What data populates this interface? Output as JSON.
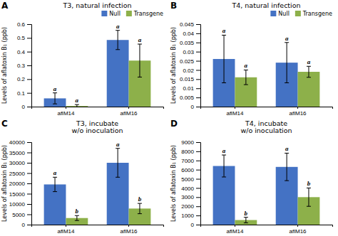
{
  "chart_data": [
    {
      "type": "bar",
      "panel_label": "A",
      "title": "T3, natural infection",
      "ylabel": "Levels of aflatoxin B₁ (ppb)",
      "categories": [
        "aflM14",
        "aflM16"
      ],
      "series": [
        {
          "name": "Null",
          "color": "#4472C4",
          "values": [
            0.06,
            0.485
          ],
          "errors": [
            0.04,
            0.07
          ],
          "letters": [
            "a",
            "a"
          ]
        },
        {
          "name": "Transgene",
          "color": "#8DB04A",
          "values": [
            0.005,
            0.335
          ],
          "errors": [
            0.01,
            0.12
          ],
          "letters": [
            "a",
            "a"
          ]
        }
      ],
      "ylim": [
        0,
        0.6
      ],
      "yticks": [
        0,
        0.1,
        0.2,
        0.3,
        0.4,
        0.5,
        0.6
      ],
      "legend": "upper right",
      "grid": false
    },
    {
      "type": "bar",
      "panel_label": "B",
      "title": "T4, natural infection",
      "ylabel": "Levels of aflatoxin B₁ (ppb)",
      "categories": [
        "aflM14",
        "aflM16"
      ],
      "series": [
        {
          "name": "Null",
          "color": "#4472C4",
          "values": [
            0.026,
            0.024
          ],
          "errors": [
            0.013,
            0.011
          ],
          "letters": [
            "a",
            "a"
          ]
        },
        {
          "name": "Transgene",
          "color": "#8DB04A",
          "values": [
            0.016,
            0.019
          ],
          "errors": [
            0.004,
            0.003
          ],
          "letters": [
            "a",
            "a"
          ]
        }
      ],
      "ylim": [
        0,
        0.045
      ],
      "yticks": [
        0,
        0.005,
        0.01,
        0.015,
        0.02,
        0.025,
        0.03,
        0.035,
        0.04,
        0.045
      ],
      "legend": "upper right",
      "grid": false
    },
    {
      "type": "bar",
      "panel_label": "C",
      "title": "T3, incubate\nw/o inoculation",
      "ylabel": "Levels of aflatoxin B₁ (ppb)",
      "categories": [
        "aflM14",
        "aflM16"
      ],
      "series": [
        {
          "name": "Null",
          "color": "#4472C4",
          "values": [
            19500,
            30000
          ],
          "errors": [
            3500,
            7000
          ],
          "letters": [
            "a",
            "a"
          ]
        },
        {
          "name": "Transgene",
          "color": "#8DB04A",
          "values": [
            3200,
            7800
          ],
          "errors": [
            1200,
            2500
          ],
          "letters": [
            "b",
            "b"
          ]
        }
      ],
      "ylim": [
        0,
        40000
      ],
      "yticks": [
        0,
        5000,
        10000,
        15000,
        20000,
        25000,
        30000,
        35000,
        40000
      ],
      "legend": false,
      "grid": false
    },
    {
      "type": "bar",
      "panel_label": "D",
      "title": "T4, incubate\nw/o inoculation",
      "ylabel": "Levels of aflatoxin B₁ (ppb)",
      "categories": [
        "aflM14",
        "aflM16"
      ],
      "series": [
        {
          "name": "Null",
          "color": "#4472C4",
          "values": [
            6400,
            6300
          ],
          "errors": [
            1200,
            1500
          ],
          "letters": [
            "a",
            "a"
          ]
        },
        {
          "name": "Transgene",
          "color": "#8DB04A",
          "values": [
            500,
            3000
          ],
          "errors": [
            300,
            1000
          ],
          "letters": [
            "b",
            "b"
          ]
        }
      ],
      "ylim": [
        0,
        9000
      ],
      "yticks": [
        0,
        1000,
        2000,
        3000,
        4000,
        5000,
        6000,
        7000,
        8000,
        9000
      ],
      "legend": false,
      "grid": false
    }
  ]
}
